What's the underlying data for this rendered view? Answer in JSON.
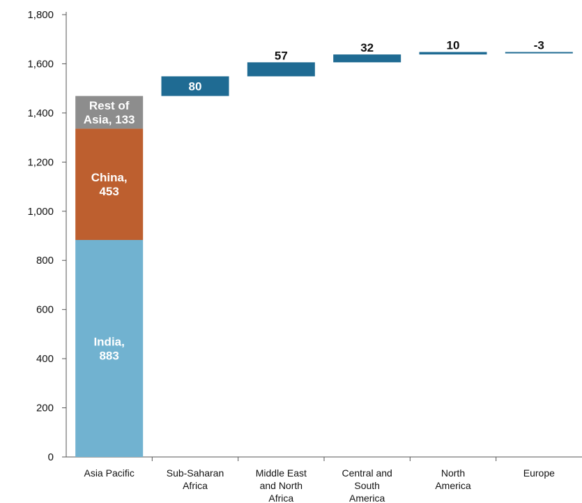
{
  "chart_data": {
    "type": "bar",
    "subtype": "waterfall",
    "categories": [
      [
        "Asia Pacific"
      ],
      [
        "Sub-Saharan",
        "Africa"
      ],
      [
        "Middle East",
        "and North",
        "Africa"
      ],
      [
        "Central and",
        "South",
        "America"
      ],
      [
        "North",
        "America"
      ],
      [
        "Europe"
      ]
    ],
    "stack": {
      "category_index": 0,
      "segments": [
        {
          "label": [
            "India,",
            "883"
          ],
          "value": 883,
          "color": "#71b2d0",
          "label_color": "#ffffff"
        },
        {
          "label": [
            "China,",
            "453"
          ],
          "value": 453,
          "color": "#bd5f2f",
          "label_color": "#ffffff"
        },
        {
          "label": [
            "Rest of",
            "Asia, 133"
          ],
          "value": 133,
          "color": "#8d8d8d",
          "label_color": "#ffffff"
        }
      ]
    },
    "increments": [
      {
        "category_index": 1,
        "value": 80,
        "label": "80"
      },
      {
        "category_index": 2,
        "value": 57,
        "label": "57"
      },
      {
        "category_index": 3,
        "value": 32,
        "label": "32"
      },
      {
        "category_index": 4,
        "value": 10,
        "label": "10"
      },
      {
        "category_index": 5,
        "value": -3,
        "label": "-3"
      }
    ],
    "increment_color": "#1f6b93",
    "ylim": [
      0,
      1800
    ],
    "y_ticks": [
      "0",
      "200",
      "400",
      "600",
      "800",
      "1,000",
      "1,200",
      "1,400",
      "1,600",
      "1,800"
    ],
    "y_tick_values": [
      0,
      200,
      400,
      600,
      800,
      1000,
      1200,
      1400,
      1600,
      1800
    ],
    "grid": false,
    "title": "",
    "xlabel": "",
    "ylabel": ""
  }
}
